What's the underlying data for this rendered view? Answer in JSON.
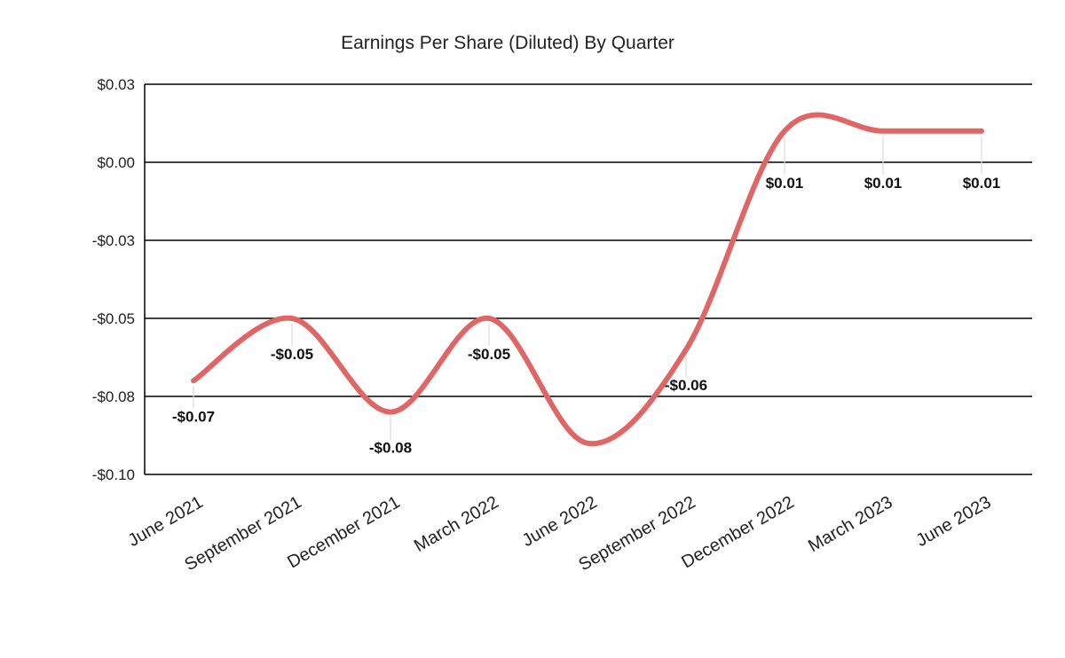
{
  "chart_data": {
    "type": "line",
    "title": "Earnings Per Share (Diluted) By Quarter",
    "xlabel": "",
    "ylabel": "",
    "categories": [
      "June 2021",
      "September 2021",
      "December 2021",
      "March 2022",
      "June 2022",
      "September 2022",
      "December 2022",
      "March 2023",
      "June 2023"
    ],
    "series": [
      {
        "values": [
          -0.07,
          -0.05,
          -0.08,
          -0.05,
          -0.09,
          -0.06,
          0.01,
          0.01,
          0.01
        ],
        "labels": [
          "-$0.07",
          "-$0.05",
          "-$0.08",
          "-$0.05",
          "",
          "-$0.06",
          "$0.01",
          "$0.01",
          "$0.01"
        ],
        "color": "#e06666"
      }
    ],
    "ylim": [
      -0.1,
      0.025
    ],
    "yticks": [
      {
        "value": 0.025,
        "label": "$0.03"
      },
      {
        "value": 0.0,
        "label": "$0.00"
      },
      {
        "value": -0.025,
        "label": "-$0.03"
      },
      {
        "value": -0.05,
        "label": "-$0.05"
      },
      {
        "value": -0.075,
        "label": "-$0.08"
      },
      {
        "value": -0.1,
        "label": "-$0.10"
      }
    ],
    "grid": true,
    "legend": "none",
    "smooth": true
  }
}
